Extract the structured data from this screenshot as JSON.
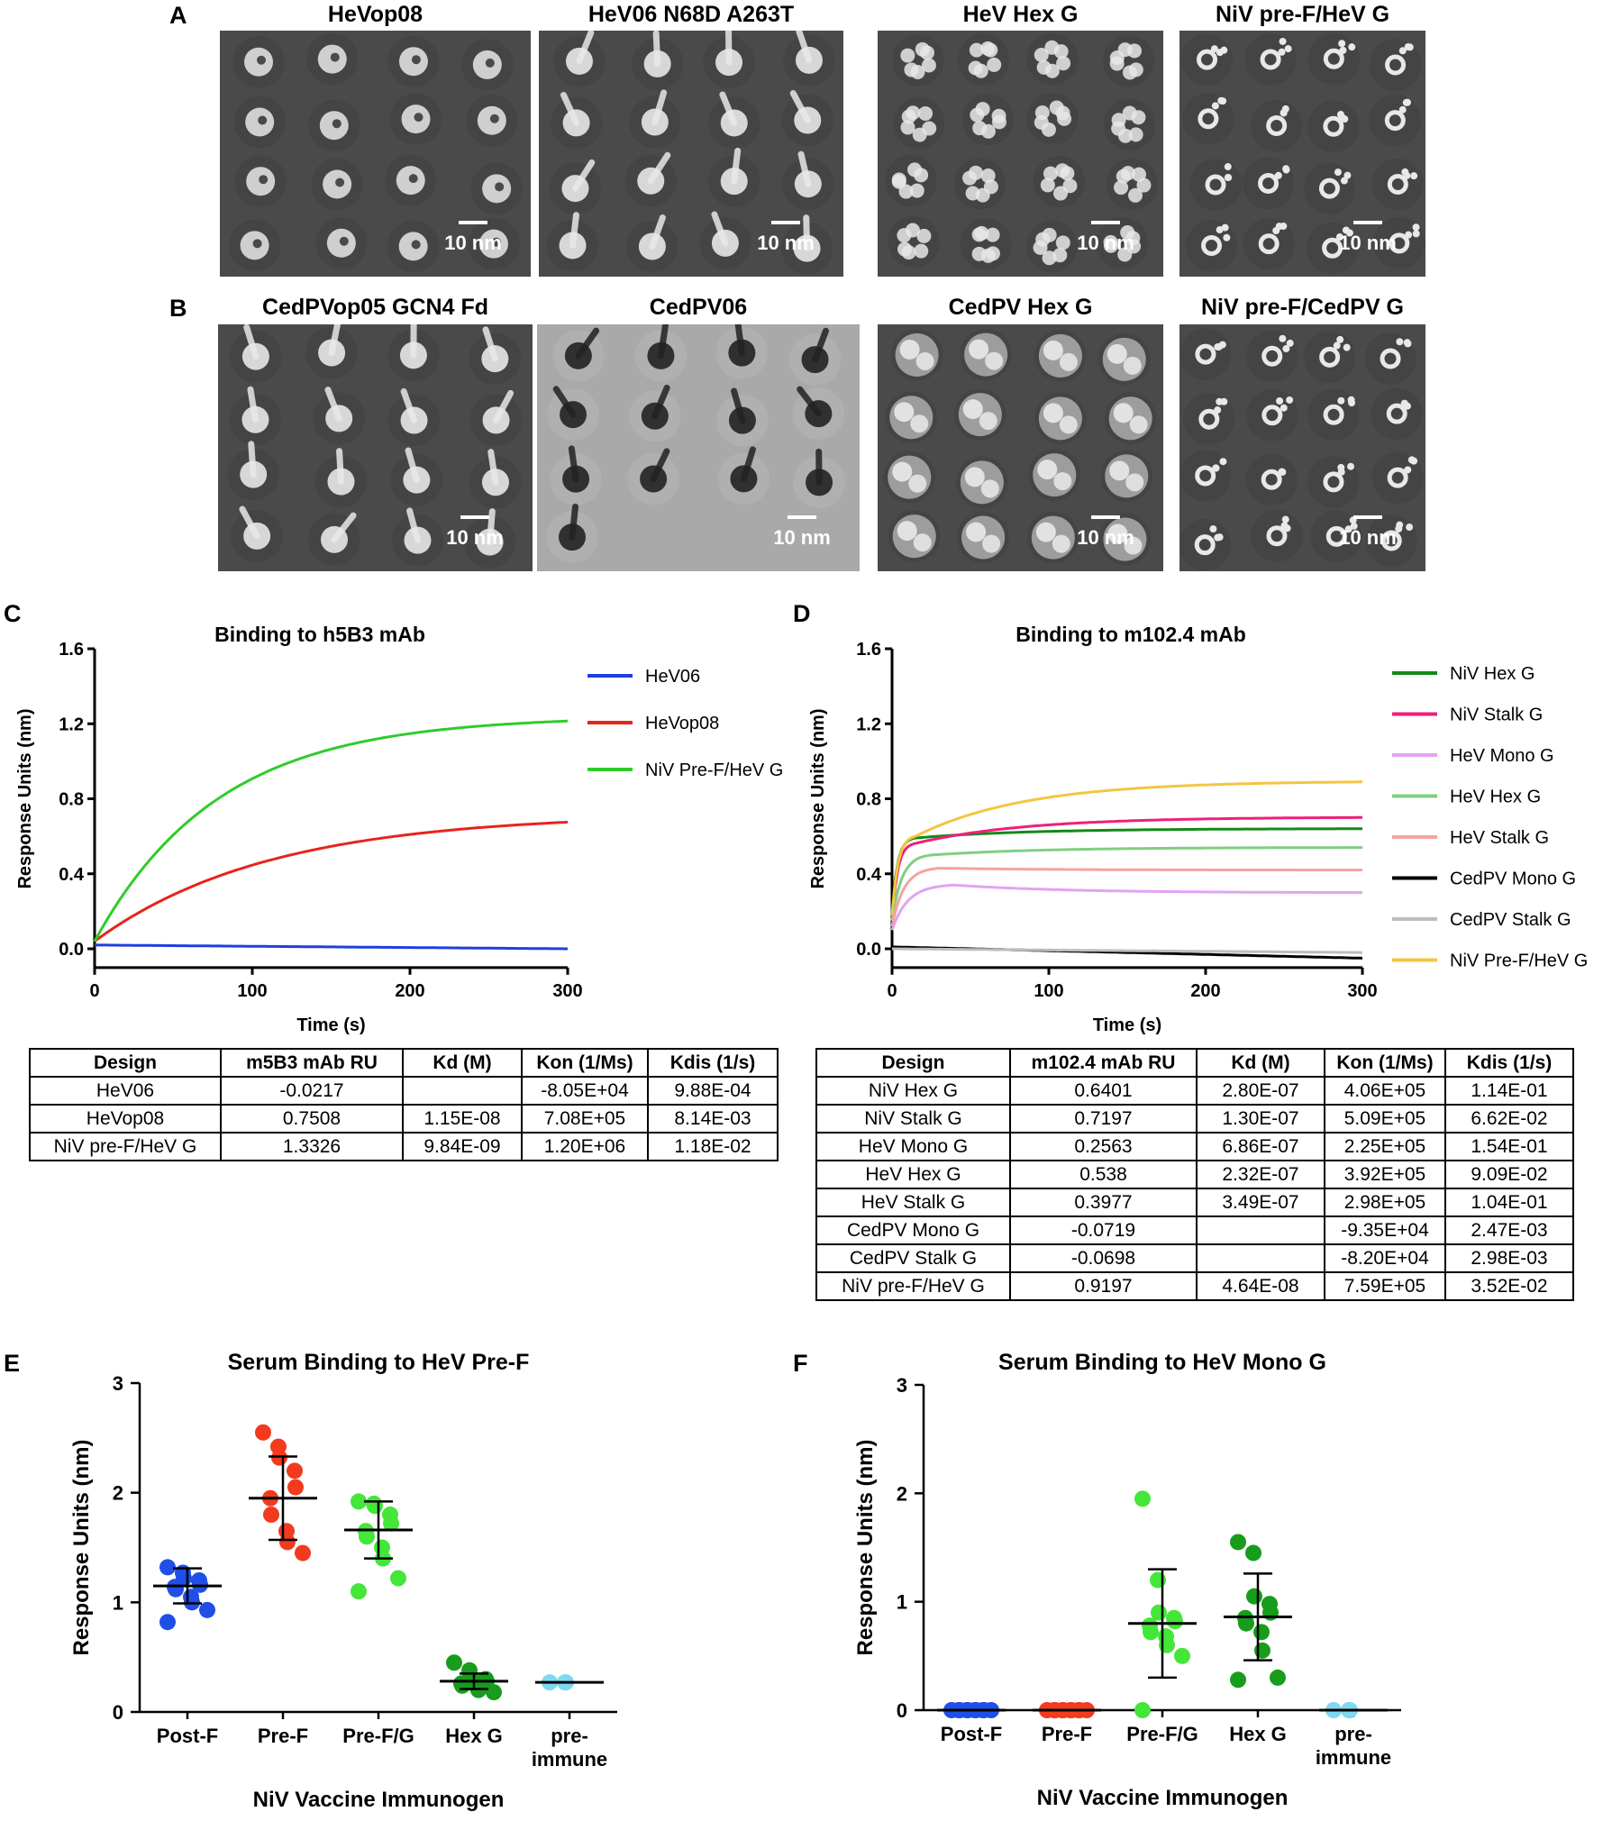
{
  "panels": {
    "A": "A",
    "B": "B",
    "C": "C",
    "D": "D",
    "E": "E",
    "F": "F"
  },
  "em_row_a": [
    {
      "title": "HeVop08",
      "scale": "10 nm",
      "style": "dark",
      "shape": "blob"
    },
    {
      "title": "HeV06 N68D A263T",
      "scale": "10 nm",
      "style": "dark",
      "shape": "tadpole"
    },
    {
      "title": "HeV Hex G",
      "scale": "10 nm",
      "style": "dark",
      "shape": "flower"
    },
    {
      "title": "NiV pre-F/HeV G",
      "scale": "10 nm",
      "style": "dark",
      "shape": "ring"
    }
  ],
  "em_row_b": [
    {
      "title": "CedPVop05 GCN4 Fd",
      "scale": "10 nm",
      "style": "dark",
      "shape": "tadpole"
    },
    {
      "title": "CedPV06",
      "scale": "10 nm",
      "style": "light",
      "shape": "tadpole"
    },
    {
      "title": "CedPV Hex G",
      "scale": "10 nm",
      "style": "dark",
      "shape": "cluster"
    },
    {
      "title": "NiV pre-F/CedPV G",
      "scale": "10 nm",
      "style": "dark",
      "shape": "ring"
    }
  ],
  "chart_data": [
    {
      "id": "C",
      "type": "line",
      "title": "Binding to h5B3 mAb",
      "xlabel": "Time (s)",
      "ylabel": "Response Units (nm)",
      "xlim": [
        0,
        300
      ],
      "ylim": [
        0,
        1.6
      ],
      "xticks": [
        "0",
        "100",
        "200",
        "300"
      ],
      "yticks": [
        "0.0",
        "0.4",
        "0.8",
        "1.2",
        "1.6"
      ],
      "legend_position": "right",
      "series": [
        {
          "name": "HeV06",
          "color": "#1f3fe0",
          "model": {
            "kind": "linear",
            "y0": 0.02,
            "y1": 0.0
          }
        },
        {
          "name": "HeVop08",
          "color": "#e8231c",
          "model": {
            "kind": "assoc",
            "y0": 0.04,
            "amp": 0.68,
            "tau": 110
          }
        },
        {
          "name": "NiV Pre-F/HeV G",
          "color": "#2fcc2a",
          "model": {
            "kind": "assoc",
            "y0": 0.04,
            "amp": 1.2,
            "tau": 78
          }
        }
      ]
    },
    {
      "id": "D",
      "type": "line",
      "title": "Binding to m102.4 mAb",
      "xlabel": "Time (s)",
      "ylabel": "Response Units (nm)",
      "xlim": [
        0,
        300
      ],
      "ylim": [
        0,
        1.6
      ],
      "xticks": [
        "0",
        "100",
        "200",
        "300"
      ],
      "yticks": [
        "0.0",
        "0.4",
        "0.8",
        "1.2",
        "1.6"
      ],
      "legend_position": "right",
      "series": [
        {
          "name": "NiV Hex G",
          "color": "#138a16",
          "model": {
            "kind": "overshoot",
            "y0": 0.2,
            "peak": 0.59,
            "tpeak": 14,
            "yend": 0.64
          }
        },
        {
          "name": "NiV Stalk G",
          "color": "#ee1f7a",
          "model": {
            "kind": "overshoot",
            "y0": 0.15,
            "peak": 0.56,
            "tpeak": 14,
            "yend": 0.7
          }
        },
        {
          "name": "HeV Mono G",
          "color": "#e3a2f2",
          "model": {
            "kind": "overshoot",
            "y0": 0.1,
            "peak": 0.34,
            "tpeak": 40,
            "yend": 0.3
          }
        },
        {
          "name": "HeV Hex G",
          "color": "#7fcf80",
          "model": {
            "kind": "overshoot",
            "y0": 0.15,
            "peak": 0.5,
            "tpeak": 25,
            "yend": 0.54
          }
        },
        {
          "name": "HeV Stalk G",
          "color": "#f4a3a3",
          "model": {
            "kind": "overshoot",
            "y0": 0.12,
            "peak": 0.43,
            "tpeak": 30,
            "yend": 0.42
          }
        },
        {
          "name": "CedPV Mono G",
          "color": "#000000",
          "model": {
            "kind": "linear",
            "y0": 0.01,
            "y1": -0.05
          }
        },
        {
          "name": "CedPV Stalk G",
          "color": "#bdbdbd",
          "model": {
            "kind": "linear",
            "y0": 0.0,
            "y1": -0.02
          }
        },
        {
          "name": "NiV Pre-F/HeV G",
          "color": "#f4c542",
          "model": {
            "kind": "overshoot",
            "y0": 0.18,
            "peak": 0.6,
            "tpeak": 15,
            "yend": 0.89
          }
        }
      ]
    },
    {
      "id": "E",
      "type": "scatter",
      "title": "Serum Binding to HeV Pre-F",
      "xlabel": "NiV Vaccine Immunogen",
      "ylabel": "Response Units (nm)",
      "ylim": [
        0,
        3
      ],
      "yticks": [
        "0",
        "1",
        "2",
        "3"
      ],
      "categories": [
        "Post-F",
        "Pre-F",
        "Pre-F/G",
        "Hex G",
        "pre-\nimmune"
      ],
      "groups": [
        {
          "color": "#1f4fe6",
          "mean": 1.15,
          "sd": 0.16,
          "values": [
            1.32,
            1.27,
            1.22,
            1.2,
            1.16,
            1.14,
            1.12,
            1.05,
            1.0,
            0.93,
            0.82
          ]
        },
        {
          "color": "#f23a1e",
          "mean": 1.95,
          "sd": 0.38,
          "values": [
            2.55,
            2.42,
            2.32,
            2.2,
            2.05,
            1.95,
            1.8,
            1.65,
            1.55,
            1.45
          ]
        },
        {
          "color": "#44e63a",
          "mean": 1.66,
          "sd": 0.26,
          "values": [
            1.92,
            1.9,
            1.88,
            1.8,
            1.72,
            1.65,
            1.6,
            1.5,
            1.4,
            1.22,
            1.1
          ]
        },
        {
          "color": "#179c1c",
          "mean": 0.28,
          "sd": 0.07,
          "values": [
            0.45,
            0.38,
            0.32,
            0.3,
            0.28,
            0.26,
            0.24,
            0.22,
            0.2,
            0.18
          ]
        },
        {
          "color": "#7fd8f0",
          "mean": 0.27,
          "sd": 0.0,
          "values": [
            0.27,
            0.27,
            0.27
          ]
        }
      ]
    },
    {
      "id": "F",
      "type": "scatter",
      "title": "Serum Binding to HeV Mono G",
      "xlabel": "NiV Vaccine Immunogen",
      "ylabel": "Response Units (nm)",
      "ylim": [
        0,
        3
      ],
      "yticks": [
        "0",
        "1",
        "2",
        "3"
      ],
      "categories": [
        "Post-F",
        "Pre-F",
        "Pre-F/G",
        "Hex G",
        "pre-\nimmune"
      ],
      "groups": [
        {
          "color": "#1f4fe6",
          "mean": 0.0,
          "sd": 0.0,
          "values": [
            0,
            0,
            0,
            0,
            0,
            0,
            0,
            0,
            0,
            0
          ]
        },
        {
          "color": "#f23a1e",
          "mean": 0.0,
          "sd": 0.0,
          "values": [
            0,
            0,
            0,
            0,
            0,
            0,
            0,
            0,
            0,
            0
          ]
        },
        {
          "color": "#44e63a",
          "mean": 0.8,
          "sd": 0.5,
          "values": [
            1.95,
            1.2,
            0.9,
            0.85,
            0.82,
            0.78,
            0.72,
            0.68,
            0.6,
            0.5,
            0.0
          ]
        },
        {
          "color": "#179c1c",
          "mean": 0.86,
          "sd": 0.4,
          "values": [
            1.55,
            1.45,
            1.05,
            0.98,
            0.9,
            0.85,
            0.8,
            0.72,
            0.55,
            0.3,
            0.28
          ]
        },
        {
          "color": "#7fd8f0",
          "mean": 0.0,
          "sd": 0.0,
          "values": [
            0,
            0,
            0
          ]
        }
      ]
    }
  ],
  "table_c": {
    "headers": [
      "Design",
      "m5B3 mAb RU",
      "Kd (M)",
      "Kon (1/Ms)",
      "Kdis (1/s)"
    ],
    "rows": [
      [
        "HeV06",
        "-0.0217",
        "",
        "-8.05E+04",
        "9.88E-04"
      ],
      [
        "HeVop08",
        "0.7508",
        "1.15E-08",
        "7.08E+05",
        "8.14E-03"
      ],
      [
        "NiV pre-F/HeV G",
        "1.3326",
        "9.84E-09",
        "1.20E+06",
        "1.18E-02"
      ]
    ]
  },
  "table_d": {
    "headers": [
      "Design",
      "m102.4 mAb RU",
      "Kd (M)",
      "Kon (1/Ms)",
      "Kdis (1/s)"
    ],
    "rows": [
      [
        "NiV Hex G",
        "0.6401",
        "2.80E-07",
        "4.06E+05",
        "1.14E-01"
      ],
      [
        "NiV Stalk G",
        "0.7197",
        "1.30E-07",
        "5.09E+05",
        "6.62E-02"
      ],
      [
        "HeV Mono G",
        "0.2563",
        "6.86E-07",
        "2.25E+05",
        "1.54E-01"
      ],
      [
        "HeV Hex G",
        "0.538",
        "2.32E-07",
        "3.92E+05",
        "9.09E-02"
      ],
      [
        "HeV Stalk G",
        "0.3977",
        "3.49E-07",
        "2.98E+05",
        "1.04E-01"
      ],
      [
        "CedPV Mono G",
        "-0.0719",
        "",
        "-9.35E+04",
        "2.47E-03"
      ],
      [
        "CedPV Stalk G",
        "-0.0698",
        "",
        "-8.20E+04",
        "2.98E-03"
      ],
      [
        "NiV pre-F/HeV G",
        "0.9197",
        "4.64E-08",
        "7.59E+05",
        "3.52E-02"
      ]
    ]
  }
}
